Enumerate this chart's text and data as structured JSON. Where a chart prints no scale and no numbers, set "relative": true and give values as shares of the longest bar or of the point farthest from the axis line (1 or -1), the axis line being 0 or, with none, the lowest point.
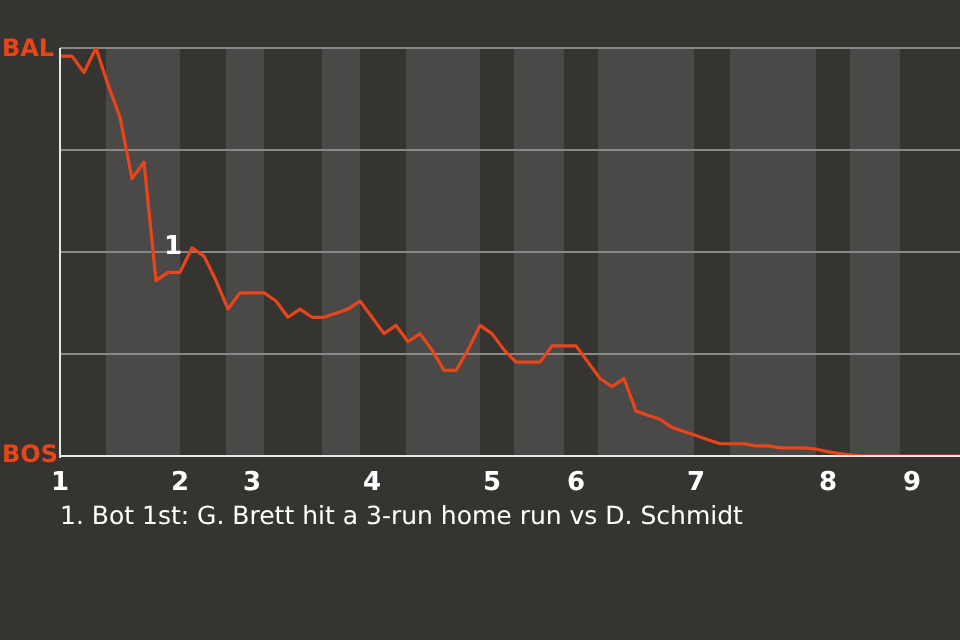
{
  "chart_data": {
    "type": "line",
    "relative": true,
    "categories": [
      "1",
      null,
      null,
      null,
      null,
      null,
      null,
      null,
      null,
      null,
      "2",
      null,
      null,
      null,
      null,
      null,
      "3",
      null,
      null,
      null,
      null,
      null,
      null,
      null,
      null,
      null,
      "4",
      null,
      null,
      null,
      null,
      null,
      null,
      null,
      null,
      null,
      "5",
      null,
      null,
      null,
      null,
      null,
      null,
      "6",
      null,
      null,
      null,
      null,
      null,
      null,
      null,
      null,
      null,
      "7",
      null,
      null,
      null,
      null,
      null,
      null,
      null,
      null,
      null,
      null,
      "8",
      null,
      null,
      null,
      null,
      null,
      null,
      "9",
      null,
      null,
      null,
      null
    ],
    "series": [
      {
        "color": "#e8461a",
        "values": [
          0.98,
          0.98,
          0.94,
          1,
          0.91,
          0.83,
          0.68,
          0.72,
          0.43,
          0.45,
          0.45,
          0.51,
          0.49,
          0.43,
          0.36,
          0.4,
          0.4,
          0.4,
          0.38,
          0.34,
          0.36,
          0.34,
          0.34,
          0.35,
          0.36,
          0.38,
          0.34,
          0.3,
          0.32,
          0.28,
          0.3,
          0.26,
          0.21,
          0.21,
          0.26,
          0.32,
          0.3,
          0.26,
          0.23,
          0.23,
          0.23,
          0.27,
          0.27,
          0.27,
          0.23,
          0.19,
          0.17,
          0.19,
          0.11,
          0.1,
          0.09,
          0.07,
          0.06,
          0.05,
          0.04,
          0.03,
          0.03,
          0.03,
          0.025,
          0.025,
          0.02,
          0.02,
          0.02,
          0.017,
          0.01,
          0.006,
          0.002,
          0,
          0,
          0,
          0,
          0,
          0,
          0,
          0,
          0
        ]
      }
    ],
    "grid": "y",
    "marker": "none",
    "line_style": "solid",
    "annotations": [
      "1",
      "BAL",
      "BOS",
      "1. Bot 1st: G. Brett hit a 3-run home run vs D. Schmidt"
    ]
  }
}
